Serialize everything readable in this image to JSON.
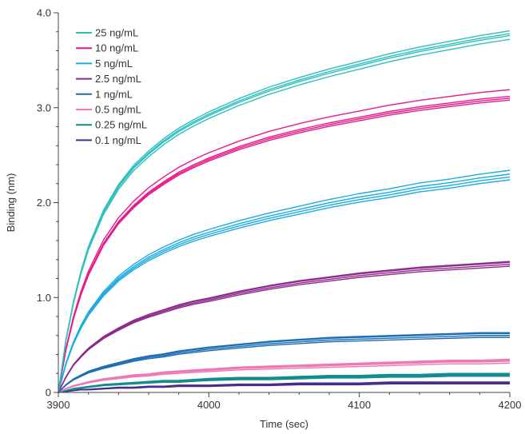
{
  "chart_data": {
    "type": "line",
    "title": "",
    "xlabel": "Time (sec)",
    "ylabel": "Binding (nm)",
    "xlim": [
      3900,
      4200
    ],
    "ylim": [
      0,
      4.0
    ],
    "x_ticks": [
      3900,
      4000,
      4100,
      4200
    ],
    "x_tick_labels": [
      "3900",
      "4000",
      "4100",
      "4200"
    ],
    "y_ticks": [
      0,
      1.0,
      2.0,
      3.0,
      4.0
    ],
    "y_tick_labels": [
      "0",
      "1.0",
      "2.0",
      "3.0",
      "4.0"
    ],
    "legend_position": "top-left",
    "replicates_per_series": 4,
    "x": [
      3900,
      3905,
      3910,
      3915,
      3920,
      3930,
      3940,
      3950,
      3960,
      3970,
      3980,
      3990,
      4000,
      4020,
      4040,
      4060,
      4080,
      4100,
      4120,
      4140,
      4160,
      4180,
      4200
    ],
    "series": [
      {
        "name": "25 ng/mL",
        "color": "#2fbfbf",
        "final_values": [
          3.81,
          3.78,
          3.76,
          3.72
        ],
        "values": [
          0,
          0.55,
          0.95,
          1.27,
          1.53,
          1.91,
          2.18,
          2.38,
          2.53,
          2.66,
          2.77,
          2.86,
          2.94,
          3.08,
          3.2,
          3.3,
          3.39,
          3.47,
          3.55,
          3.62,
          3.68,
          3.74,
          3.79
        ]
      },
      {
        "name": "10 ng/mL",
        "color": "#e8198b",
        "final_values": [
          3.19,
          3.12,
          3.1,
          3.08
        ],
        "values": [
          0,
          0.45,
          0.78,
          1.04,
          1.25,
          1.57,
          1.8,
          1.97,
          2.11,
          2.22,
          2.32,
          2.4,
          2.47,
          2.59,
          2.69,
          2.77,
          2.84,
          2.9,
          2.96,
          3.01,
          3.05,
          3.09,
          3.12
        ]
      },
      {
        "name": "5 ng/mL",
        "color": "#1bace0",
        "final_values": [
          2.34,
          2.3,
          2.27,
          2.24
        ],
        "values": [
          0,
          0.3,
          0.52,
          0.69,
          0.83,
          1.04,
          1.2,
          1.32,
          1.42,
          1.5,
          1.57,
          1.63,
          1.68,
          1.77,
          1.85,
          1.92,
          1.99,
          2.05,
          2.1,
          2.16,
          2.2,
          2.25,
          2.29
        ]
      },
      {
        "name": "2.5 ng/mL",
        "color": "#8e2a8e",
        "final_values": [
          1.38,
          1.37,
          1.35,
          1.33
        ],
        "values": [
          0,
          0.16,
          0.29,
          0.38,
          0.46,
          0.58,
          0.67,
          0.75,
          0.81,
          0.86,
          0.91,
          0.95,
          0.98,
          1.05,
          1.11,
          1.16,
          1.2,
          1.24,
          1.27,
          1.3,
          1.32,
          1.34,
          1.36
        ]
      },
      {
        "name": "1 ng/mL",
        "color": "#1c6eb4",
        "final_values": [
          0.63,
          0.62,
          0.6,
          0.58
        ],
        "values": [
          0,
          0.08,
          0.14,
          0.18,
          0.22,
          0.27,
          0.31,
          0.35,
          0.38,
          0.4,
          0.43,
          0.45,
          0.47,
          0.5,
          0.53,
          0.55,
          0.57,
          0.58,
          0.59,
          0.6,
          0.61,
          0.62,
          0.62
        ]
      },
      {
        "name": "0.5 ng/mL",
        "color": "#ef77b5",
        "final_values": [
          0.35,
          0.34,
          0.33,
          0.31
        ],
        "values": [
          0,
          0.04,
          0.07,
          0.09,
          0.11,
          0.14,
          0.16,
          0.18,
          0.19,
          0.21,
          0.22,
          0.23,
          0.24,
          0.26,
          0.27,
          0.28,
          0.29,
          0.3,
          0.31,
          0.32,
          0.33,
          0.33,
          0.34
        ]
      },
      {
        "name": "0.25 ng/mL",
        "color": "#128c8c",
        "final_values": [
          0.2,
          0.19,
          0.18,
          0.17
        ],
        "values": [
          0,
          0.02,
          0.04,
          0.05,
          0.06,
          0.08,
          0.09,
          0.1,
          0.11,
          0.12,
          0.12,
          0.13,
          0.14,
          0.15,
          0.15,
          0.16,
          0.17,
          0.17,
          0.18,
          0.18,
          0.19,
          0.19,
          0.19
        ]
      },
      {
        "name": "0.1 ng/mL",
        "color": "#4a2a8c",
        "final_values": [
          0.11,
          0.1,
          0.1,
          0.09
        ],
        "values": [
          0,
          0.01,
          0.02,
          0.03,
          0.03,
          0.04,
          0.05,
          0.05,
          0.06,
          0.06,
          0.07,
          0.07,
          0.07,
          0.08,
          0.08,
          0.09,
          0.09,
          0.09,
          0.1,
          0.1,
          0.1,
          0.1,
          0.1
        ]
      }
    ]
  }
}
